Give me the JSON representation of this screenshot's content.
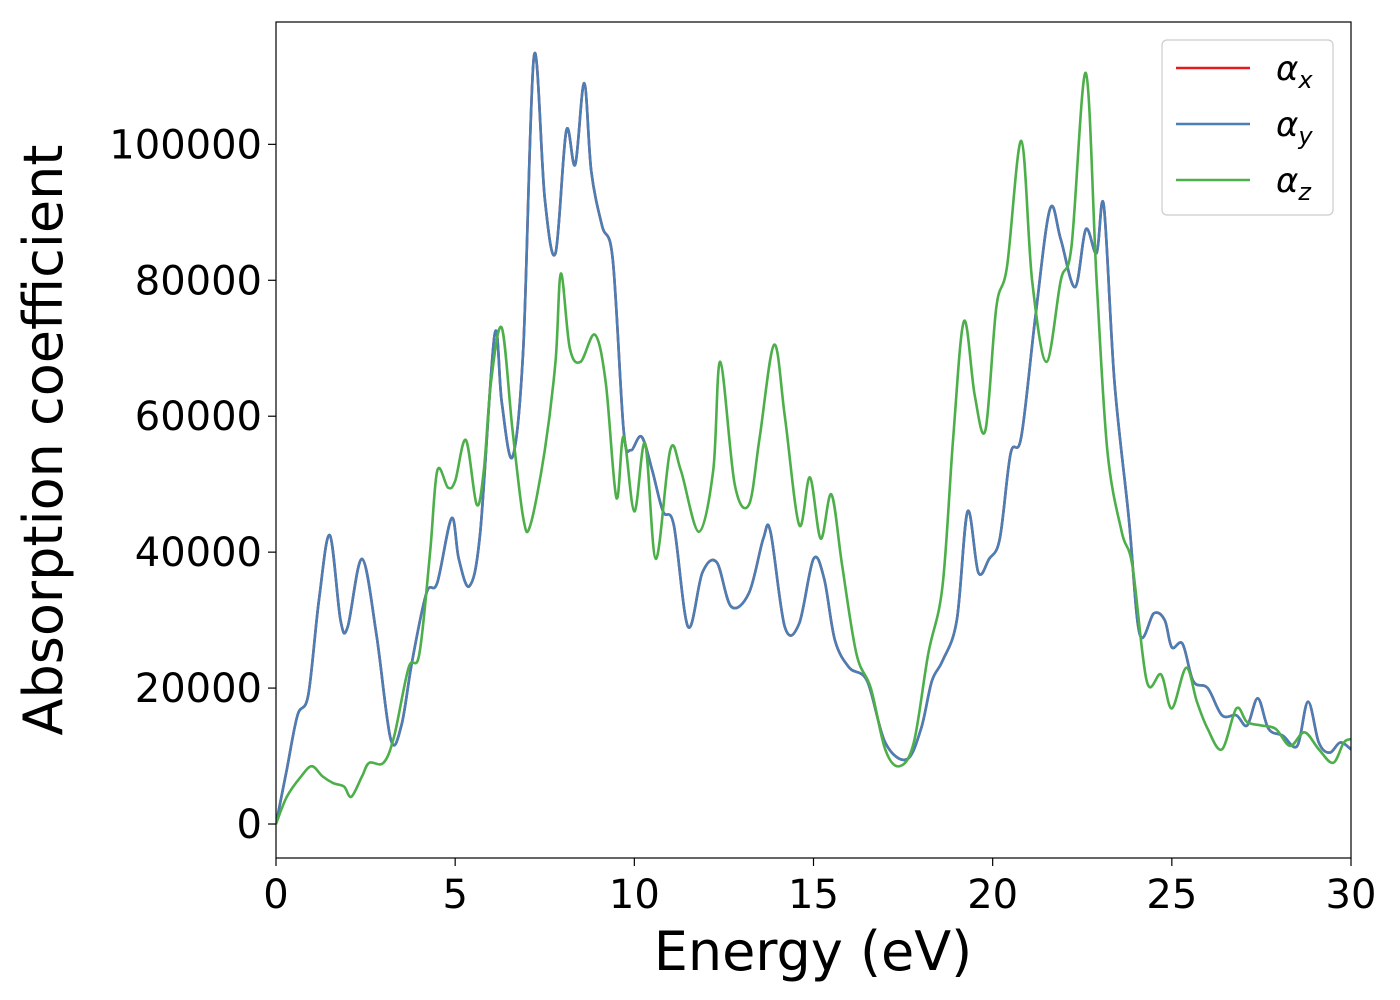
{
  "chart_data": {
    "type": "line",
    "title": "",
    "xlabel": "Energy (eV)",
    "ylabel": "Absorption coefficient",
    "xlim": [
      0,
      30
    ],
    "ylim": [
      -5000,
      118000
    ],
    "xticks": [
      0,
      5,
      10,
      15,
      20,
      25,
      30
    ],
    "xtick_labels": [
      "0",
      "5",
      "10",
      "15",
      "20",
      "25",
      "30"
    ],
    "yticks": [
      0,
      20000,
      40000,
      60000,
      80000,
      100000
    ],
    "ytick_labels": [
      "0",
      "20000",
      "40000",
      "60000",
      "80000",
      "100000"
    ],
    "grid": false,
    "legend_position": "top-right",
    "series": [
      {
        "name": "αx",
        "legend_base": "α",
        "legend_sub": "x",
        "color": "#e41a1c",
        "points": [
          [
            0,
            0
          ],
          [
            0.3,
            8000
          ],
          [
            0.6,
            16000
          ],
          [
            0.9,
            19000
          ],
          [
            1.2,
            33000
          ],
          [
            1.5,
            42500
          ],
          [
            1.8,
            30000
          ],
          [
            2.0,
            29000
          ],
          [
            2.4,
            39000
          ],
          [
            2.8,
            28000
          ],
          [
            3.2,
            12500
          ],
          [
            3.5,
            14500
          ],
          [
            3.8,
            24000
          ],
          [
            4.2,
            34000
          ],
          [
            4.5,
            35500
          ],
          [
            4.9,
            45000
          ],
          [
            5.1,
            39000
          ],
          [
            5.4,
            35000
          ],
          [
            5.7,
            43000
          ],
          [
            6.1,
            72000
          ],
          [
            6.3,
            62000
          ],
          [
            6.6,
            54000
          ],
          [
            6.9,
            70000
          ],
          [
            7.2,
            113000
          ],
          [
            7.5,
            92000
          ],
          [
            7.8,
            84000
          ],
          [
            8.1,
            102000
          ],
          [
            8.35,
            97000
          ],
          [
            8.6,
            109000
          ],
          [
            8.8,
            96000
          ],
          [
            9.1,
            88000
          ],
          [
            9.4,
            83000
          ],
          [
            9.7,
            58000
          ],
          [
            9.9,
            55000
          ],
          [
            10.2,
            57000
          ],
          [
            10.5,
            52000
          ],
          [
            10.8,
            46000
          ],
          [
            11.1,
            44000
          ],
          [
            11.5,
            29000
          ],
          [
            11.9,
            37000
          ],
          [
            12.3,
            38500
          ],
          [
            12.7,
            32000
          ],
          [
            13.2,
            34000
          ],
          [
            13.6,
            42000
          ],
          [
            13.8,
            43000
          ],
          [
            14.2,
            29000
          ],
          [
            14.6,
            29500
          ],
          [
            15.0,
            39000
          ],
          [
            15.3,
            36000
          ],
          [
            15.6,
            27000
          ],
          [
            16.0,
            23000
          ],
          [
            16.5,
            21000
          ],
          [
            17.0,
            12000
          ],
          [
            17.6,
            9500
          ],
          [
            18.0,
            14000
          ],
          [
            18.3,
            21000
          ],
          [
            18.6,
            24000
          ],
          [
            19.0,
            30000
          ],
          [
            19.3,
            46000
          ],
          [
            19.6,
            37000
          ],
          [
            19.9,
            39000
          ],
          [
            20.2,
            42000
          ],
          [
            20.5,
            54500
          ],
          [
            20.8,
            57000
          ],
          [
            21.2,
            75000
          ],
          [
            21.6,
            90500
          ],
          [
            21.9,
            86000
          ],
          [
            22.3,
            79000
          ],
          [
            22.6,
            87500
          ],
          [
            22.9,
            84000
          ],
          [
            23.1,
            91000
          ],
          [
            23.4,
            65000
          ],
          [
            23.8,
            45000
          ],
          [
            24.1,
            28000
          ],
          [
            24.5,
            31000
          ],
          [
            24.8,
            30000
          ],
          [
            25.0,
            26000
          ],
          [
            25.3,
            26500
          ],
          [
            25.6,
            21000
          ],
          [
            26.0,
            20000
          ],
          [
            26.4,
            16000
          ],
          [
            26.8,
            16000
          ],
          [
            27.1,
            14500
          ],
          [
            27.4,
            18500
          ],
          [
            27.7,
            14000
          ],
          [
            28.1,
            13000
          ],
          [
            28.5,
            11500
          ],
          [
            28.8,
            18000
          ],
          [
            29.1,
            12000
          ],
          [
            29.4,
            10500
          ],
          [
            29.7,
            12000
          ],
          [
            30.0,
            11000
          ]
        ]
      },
      {
        "name": "αy",
        "legend_base": "α",
        "legend_sub": "y",
        "color": "#4a7fb5",
        "points": [
          [
            0,
            0
          ],
          [
            0.3,
            8000
          ],
          [
            0.6,
            16000
          ],
          [
            0.9,
            19000
          ],
          [
            1.2,
            33000
          ],
          [
            1.5,
            42500
          ],
          [
            1.8,
            30000
          ],
          [
            2.0,
            29000
          ],
          [
            2.4,
            39000
          ],
          [
            2.8,
            28000
          ],
          [
            3.2,
            12500
          ],
          [
            3.5,
            14500
          ],
          [
            3.8,
            24000
          ],
          [
            4.2,
            34000
          ],
          [
            4.5,
            35500
          ],
          [
            4.9,
            45000
          ],
          [
            5.1,
            39000
          ],
          [
            5.4,
            35000
          ],
          [
            5.7,
            43000
          ],
          [
            6.1,
            72000
          ],
          [
            6.3,
            62000
          ],
          [
            6.6,
            54000
          ],
          [
            6.9,
            70000
          ],
          [
            7.2,
            113000
          ],
          [
            7.5,
            92000
          ],
          [
            7.8,
            84000
          ],
          [
            8.1,
            102000
          ],
          [
            8.35,
            97000
          ],
          [
            8.6,
            109000
          ],
          [
            8.8,
            96000
          ],
          [
            9.1,
            88000
          ],
          [
            9.4,
            83000
          ],
          [
            9.7,
            58000
          ],
          [
            9.9,
            55000
          ],
          [
            10.2,
            57000
          ],
          [
            10.5,
            52000
          ],
          [
            10.8,
            46000
          ],
          [
            11.1,
            44000
          ],
          [
            11.5,
            29000
          ],
          [
            11.9,
            37000
          ],
          [
            12.3,
            38500
          ],
          [
            12.7,
            32000
          ],
          [
            13.2,
            34000
          ],
          [
            13.6,
            42000
          ],
          [
            13.8,
            43000
          ],
          [
            14.2,
            29000
          ],
          [
            14.6,
            29500
          ],
          [
            15.0,
            39000
          ],
          [
            15.3,
            36000
          ],
          [
            15.6,
            27000
          ],
          [
            16.0,
            23000
          ],
          [
            16.5,
            21000
          ],
          [
            17.0,
            12000
          ],
          [
            17.6,
            9500
          ],
          [
            18.0,
            14000
          ],
          [
            18.3,
            21000
          ],
          [
            18.6,
            24000
          ],
          [
            19.0,
            30000
          ],
          [
            19.3,
            46000
          ],
          [
            19.6,
            37000
          ],
          [
            19.9,
            39000
          ],
          [
            20.2,
            42000
          ],
          [
            20.5,
            54500
          ],
          [
            20.8,
            57000
          ],
          [
            21.2,
            75000
          ],
          [
            21.6,
            90500
          ],
          [
            21.9,
            86000
          ],
          [
            22.3,
            79000
          ],
          [
            22.6,
            87500
          ],
          [
            22.9,
            84000
          ],
          [
            23.1,
            91000
          ],
          [
            23.4,
            65000
          ],
          [
            23.8,
            45000
          ],
          [
            24.1,
            28000
          ],
          [
            24.5,
            31000
          ],
          [
            24.8,
            30000
          ],
          [
            25.0,
            26000
          ],
          [
            25.3,
            26500
          ],
          [
            25.6,
            21000
          ],
          [
            26.0,
            20000
          ],
          [
            26.4,
            16000
          ],
          [
            26.8,
            16000
          ],
          [
            27.1,
            14500
          ],
          [
            27.4,
            18500
          ],
          [
            27.7,
            14000
          ],
          [
            28.1,
            13000
          ],
          [
            28.5,
            11500
          ],
          [
            28.8,
            18000
          ],
          [
            29.1,
            12000
          ],
          [
            29.4,
            10500
          ],
          [
            29.7,
            12000
          ],
          [
            30.0,
            11000
          ]
        ]
      },
      {
        "name": "αz",
        "legend_base": "α",
        "legend_sub": "z",
        "color": "#4daf4a",
        "points": [
          [
            0,
            0
          ],
          [
            0.3,
            4000
          ],
          [
            0.7,
            7000
          ],
          [
            1.0,
            8500
          ],
          [
            1.3,
            7000
          ],
          [
            1.6,
            6000
          ],
          [
            1.9,
            5500
          ],
          [
            2.1,
            4000
          ],
          [
            2.4,
            7000
          ],
          [
            2.6,
            9000
          ],
          [
            3.0,
            9000
          ],
          [
            3.3,
            13000
          ],
          [
            3.7,
            23000
          ],
          [
            4.0,
            25000
          ],
          [
            4.3,
            40000
          ],
          [
            4.5,
            52000
          ],
          [
            4.8,
            49500
          ],
          [
            5.0,
            50500
          ],
          [
            5.3,
            56500
          ],
          [
            5.6,
            47000
          ],
          [
            5.8,
            52000
          ],
          [
            6.0,
            65000
          ],
          [
            6.3,
            73000
          ],
          [
            6.6,
            58000
          ],
          [
            6.9,
            45000
          ],
          [
            7.1,
            44000
          ],
          [
            7.5,
            55000
          ],
          [
            7.8,
            68000
          ],
          [
            7.95,
            81000
          ],
          [
            8.2,
            70000
          ],
          [
            8.5,
            68000
          ],
          [
            8.9,
            72000
          ],
          [
            9.2,
            65000
          ],
          [
            9.5,
            48000
          ],
          [
            9.7,
            57000
          ],
          [
            10.0,
            46000
          ],
          [
            10.3,
            56000
          ],
          [
            10.6,
            39000
          ],
          [
            11.0,
            55000
          ],
          [
            11.3,
            52000
          ],
          [
            11.8,
            43000
          ],
          [
            12.2,
            52000
          ],
          [
            12.4,
            68000
          ],
          [
            12.8,
            50000
          ],
          [
            13.2,
            47000
          ],
          [
            13.5,
            57000
          ],
          [
            13.9,
            70500
          ],
          [
            14.2,
            60000
          ],
          [
            14.6,
            44000
          ],
          [
            14.9,
            51000
          ],
          [
            15.2,
            42000
          ],
          [
            15.5,
            48500
          ],
          [
            15.8,
            38000
          ],
          [
            16.2,
            25000
          ],
          [
            16.6,
            20000
          ],
          [
            17.0,
            11000
          ],
          [
            17.4,
            8500
          ],
          [
            17.8,
            12000
          ],
          [
            18.2,
            25000
          ],
          [
            18.6,
            35000
          ],
          [
            18.9,
            57000
          ],
          [
            19.2,
            74000
          ],
          [
            19.5,
            63000
          ],
          [
            19.8,
            58000
          ],
          [
            20.1,
            76000
          ],
          [
            20.4,
            82000
          ],
          [
            20.8,
            100500
          ],
          [
            21.1,
            80000
          ],
          [
            21.5,
            68000
          ],
          [
            21.9,
            80000
          ],
          [
            22.2,
            85000
          ],
          [
            22.6,
            110500
          ],
          [
            22.9,
            80000
          ],
          [
            23.2,
            55000
          ],
          [
            23.6,
            43000
          ],
          [
            23.9,
            38000
          ],
          [
            24.3,
            21000
          ],
          [
            24.7,
            22000
          ],
          [
            25.0,
            17000
          ],
          [
            25.4,
            23000
          ],
          [
            25.7,
            18000
          ],
          [
            26.0,
            14000
          ],
          [
            26.4,
            11000
          ],
          [
            26.8,
            17000
          ],
          [
            27.1,
            15000
          ],
          [
            27.5,
            14500
          ],
          [
            27.9,
            14000
          ],
          [
            28.3,
            11500
          ],
          [
            28.7,
            13500
          ],
          [
            29.1,
            11000
          ],
          [
            29.5,
            9000
          ],
          [
            29.8,
            12000
          ],
          [
            30.0,
            12500
          ]
        ]
      }
    ]
  }
}
